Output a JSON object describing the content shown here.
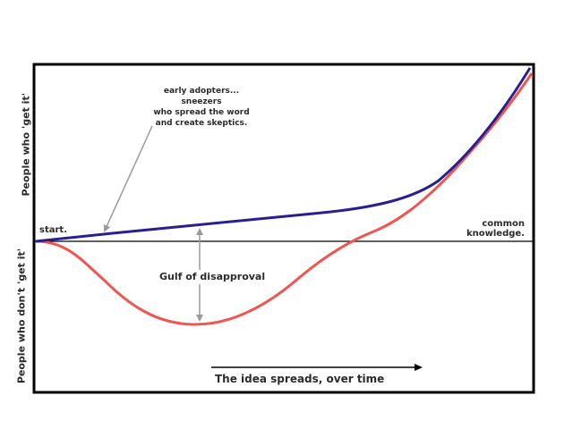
{
  "labels": {
    "start": "start.",
    "common_knowledge": [
      "common",
      "knowledge."
    ],
    "early_adopters": [
      "early adopters... sneezers",
      "who spread the word",
      "and create skeptics."
    ],
    "gulf": "Gulf of disapproval",
    "x_axis": "The idea spreads, over time",
    "y_axis_top": "People who 'get it'",
    "y_axis_bottom": "People who don't 'get it'"
  },
  "colors": {
    "frame": "#000000",
    "get_it_curve": "#2a1f8f",
    "dont_get_it_curve": "#f1554f",
    "annotation": "#9a9a9a",
    "text": "#2b2b2b"
  }
}
